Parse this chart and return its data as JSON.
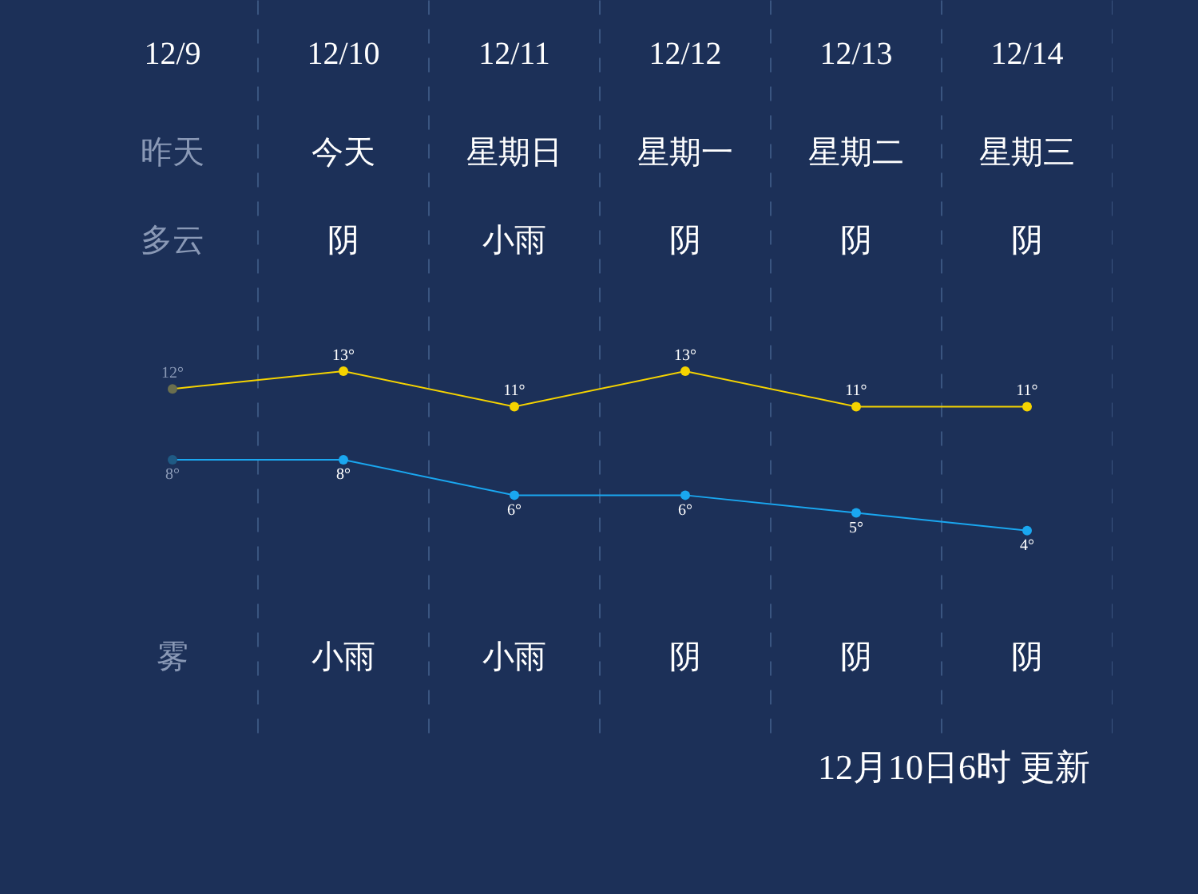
{
  "chart_data": {
    "type": "line",
    "categories": [
      "12/9",
      "12/10",
      "12/11",
      "12/12",
      "12/13",
      "12/14"
    ],
    "series": [
      {
        "color": "#f5d300",
        "colors": [
          "#6b6f4e",
          "#f5d300",
          "#f5d300",
          "#f5d300",
          "#f5d300",
          "#f5d300"
        ],
        "values": [
          12,
          13,
          11,
          13,
          11,
          11
        ],
        "value_labels": [
          "12°",
          "13°",
          "11°",
          "13°",
          "11°",
          "11°"
        ]
      },
      {
        "color": "#1aa7f0",
        "colors": [
          "#1f5a84",
          "#1aa7f0",
          "#1aa7f0",
          "#1aa7f0",
          "#1aa7f0",
          "#1aa7f0"
        ],
        "values": [
          8,
          8,
          6,
          6,
          5,
          4
        ],
        "value_labels": [
          "8°",
          "8°",
          "6°",
          "6°",
          "5°",
          "4°"
        ]
      }
    ],
    "tick_labels": "x",
    "marker": "circle",
    "line_style": "solid",
    "grid": "x",
    "annotations": [
      "昨天",
      "今天",
      "星期日",
      "星期一",
      "星期二",
      "星期三",
      "多云",
      "阴",
      "小雨",
      "阴",
      "阴",
      "阴",
      "雾",
      "小雨",
      "小雨",
      "阴",
      "阴",
      "阴",
      "12月10日6时 更新"
    ]
  }
}
